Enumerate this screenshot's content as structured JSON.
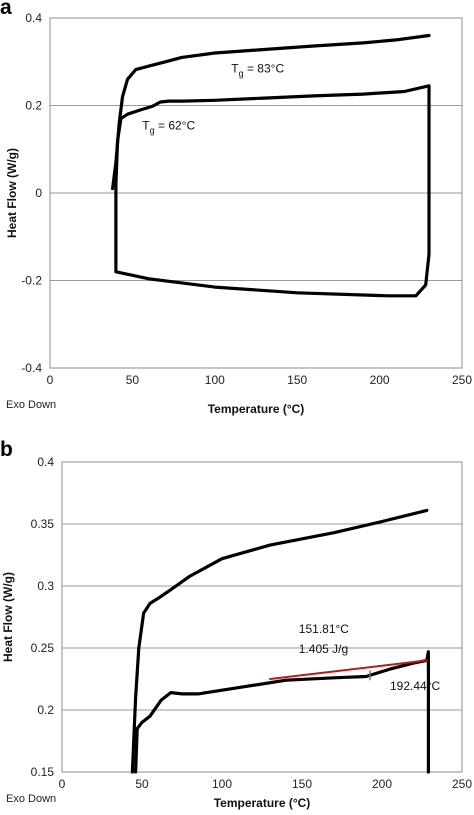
{
  "chart_data": [
    {
      "panel_label": "a",
      "type": "line",
      "xlabel": "Temperature (°C)",
      "ylabel": "Heat Flow (W/g)",
      "note": "Exo Down",
      "xlim": [
        0,
        250
      ],
      "ylim": [
        -0.4,
        0.4
      ],
      "xticks": [
        0,
        50,
        100,
        150,
        200,
        250
      ],
      "yticks": [
        -0.4,
        -0.2,
        0,
        0.2,
        0.4
      ],
      "grid": true,
      "series": [
        {
          "color": "#000000",
          "points": [
            [
              38,
              0.01
            ],
            [
              40,
              0.07
            ],
            [
              42,
              0.16
            ],
            [
              44,
              0.22
            ],
            [
              47,
              0.26
            ],
            [
              52,
              0.282
            ],
            [
              60,
              0.29
            ],
            [
              70,
              0.3
            ],
            [
              80,
              0.31
            ],
            [
              100,
              0.32
            ],
            [
              130,
              0.328
            ],
            [
              160,
              0.336
            ],
            [
              190,
              0.343
            ],
            [
              210,
              0.35
            ],
            [
              230,
              0.36
            ]
          ]
        },
        {
          "color": "#000000",
          "points": [
            [
              40,
              0.02
            ],
            [
              41,
              0.12
            ],
            [
              43,
              0.17
            ],
            [
              47,
              0.18
            ],
            [
              55,
              0.19
            ],
            [
              62,
              0.198
            ],
            [
              67,
              0.208
            ],
            [
              72,
              0.21
            ],
            [
              80,
              0.21
            ],
            [
              100,
              0.212
            ],
            [
              130,
              0.217
            ],
            [
              160,
              0.222
            ],
            [
              190,
              0.226
            ],
            [
              215,
              0.232
            ],
            [
              230,
              0.245
            ],
            [
              230,
              -0.14
            ],
            [
              228,
              -0.21
            ],
            [
              222,
              -0.235
            ],
            [
              205,
              -0.235
            ],
            [
              150,
              -0.228
            ],
            [
              100,
              -0.215
            ],
            [
              60,
              -0.196
            ],
            [
              40,
              -0.18
            ],
            [
              40,
              0.02
            ]
          ]
        }
      ],
      "annotations": [
        {
          "text": "T",
          "sub": "g",
          "rest": " = 83°C",
          "x": 110,
          "y": 0.275
        },
        {
          "text": "T",
          "sub": "g",
          "rest": " = 62°C",
          "x": 56,
          "y": 0.145
        }
      ]
    },
    {
      "panel_label": "b",
      "type": "line",
      "xlabel": "Temperature (°C)",
      "ylabel": "Heat Flow (W/g)",
      "note": "Exo Down",
      "xlim": [
        0,
        250
      ],
      "ylim": [
        0.15,
        0.4
      ],
      "xticks": [
        0,
        50,
        100,
        150,
        200,
        250
      ],
      "yticks": [
        0.15,
        0.2,
        0.25,
        0.3,
        0.35,
        0.4
      ],
      "grid": true,
      "series": [
        {
          "color": "#000000",
          "points": [
            [
              44,
              0.15
            ],
            [
              46,
              0.21
            ],
            [
              48,
              0.25
            ],
            [
              51,
              0.278
            ],
            [
              55,
              0.286
            ],
            [
              60,
              0.29
            ],
            [
              68,
              0.297
            ],
            [
              80,
              0.308
            ],
            [
              100,
              0.322
            ],
            [
              130,
              0.333
            ],
            [
              170,
              0.343
            ],
            [
              200,
              0.352
            ],
            [
              228,
              0.361
            ]
          ]
        },
        {
          "color": "#000000",
          "points": [
            [
              46,
              0.15
            ],
            [
              47,
              0.185
            ],
            [
              50,
              0.19
            ],
            [
              55,
              0.195
            ],
            [
              62,
              0.208
            ],
            [
              68,
              0.214
            ],
            [
              75,
              0.213
            ],
            [
              85,
              0.213
            ],
            [
              110,
              0.218
            ],
            [
              140,
              0.224
            ],
            [
              170,
              0.226
            ],
            [
              190,
              0.227
            ],
            [
              205,
              0.233
            ],
            [
              220,
              0.238
            ],
            [
              228,
              0.24
            ],
            [
              229,
              0.247
            ],
            [
              229,
              0.15
            ]
          ]
        },
        {
          "color": "#b71c1c",
          "points": [
            [
              130,
              0.225
            ],
            [
              228,
              0.24
            ]
          ]
        }
      ],
      "annotations": [
        {
          "text": "151.81°C",
          "x": 148,
          "y": 0.262
        },
        {
          "text": "1.405 J/g",
          "x": 148,
          "y": 0.246
        },
        {
          "text": "192.44°C",
          "x": 205,
          "y": 0.216
        }
      ],
      "marker": {
        "x": 192.44,
        "y": 0.228,
        "color": "#5b7fa6"
      }
    }
  ]
}
